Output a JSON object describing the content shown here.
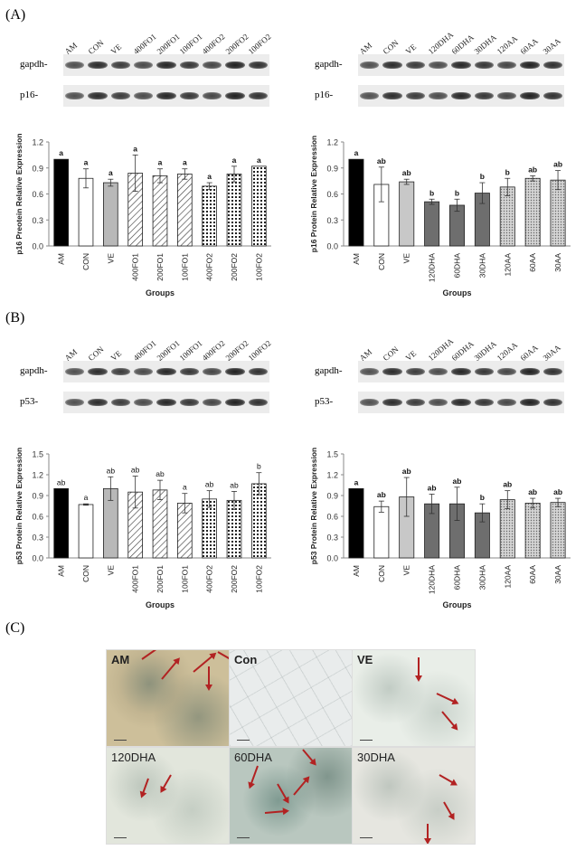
{
  "panels": {
    "a": "(A)",
    "b": "(B)",
    "c": "(C)"
  },
  "blots": {
    "a_left": {
      "lanes": [
        "AM",
        "CON",
        "VE",
        "400FO1",
        "200FO1",
        "100FO1",
        "400FO2",
        "200FO2",
        "100FO2"
      ],
      "row1": "gapdh-",
      "row2": "p16-"
    },
    "a_right": {
      "lanes": [
        "AM",
        "CON",
        "VE",
        "120DHA",
        "60DHA",
        "30DHA",
        "120AA",
        "60AA",
        "30AA"
      ],
      "row1": "gapdh-",
      "row2": "p16-"
    },
    "b_left": {
      "lanes": [
        "AM",
        "CON",
        "VE",
        "400FO1",
        "200FO1",
        "100FO1",
        "400FO2",
        "200FO2",
        "100FO2"
      ],
      "row1": "gapdh-",
      "row2": "p53-"
    },
    "b_right": {
      "lanes": [
        "AM",
        "CON",
        "VE",
        "120DHA",
        "60DHA",
        "30DHA",
        "120AA",
        "60AA",
        "30AA"
      ],
      "row1": "gapdh-",
      "row2": "p53-"
    }
  },
  "chart_data": [
    {
      "id": "a_left",
      "type": "bar",
      "ylabel": "p16 Preotein Relative Expression",
      "xlabel": "Groups",
      "ylim": [
        0,
        1.2
      ],
      "yticks": [
        "0.0",
        "0.3",
        "0.6",
        "0.9",
        "1.2"
      ],
      "categories": [
        "AM",
        "CON",
        "VE",
        "400FO1",
        "200FO1",
        "100FO1",
        "400FO2",
        "200FO2",
        "100FO2"
      ],
      "values": [
        1.0,
        0.78,
        0.73,
        0.84,
        0.81,
        0.83,
        0.69,
        0.83,
        0.92
      ],
      "errors": [
        0,
        0.11,
        0.04,
        0.21,
        0.08,
        0.06,
        0.04,
        0.09,
        0
      ],
      "letters": [
        "a",
        "a",
        "a",
        "a",
        "a",
        "a",
        "a",
        "a",
        "a"
      ],
      "letters_bold": true,
      "patterns": [
        "black",
        "white",
        "gray",
        "diag",
        "diag",
        "diag",
        "dots",
        "dots",
        "dots"
      ]
    },
    {
      "id": "a_right",
      "type": "bar",
      "ylabel": "p16 Protein Relative Expression",
      "xlabel": "Groups",
      "ylim": [
        0,
        1.2
      ],
      "yticks": [
        "0.0",
        "0.3",
        "0.6",
        "0.9",
        "1.2"
      ],
      "categories": [
        "AM",
        "CON",
        "VE",
        "120DHA",
        "60DHA",
        "30DHA",
        "120AA",
        "60AA",
        "30AA"
      ],
      "values": [
        1.0,
        0.71,
        0.74,
        0.51,
        0.47,
        0.61,
        0.68,
        0.78,
        0.76
      ],
      "errors": [
        0,
        0.2,
        0.03,
        0.03,
        0.07,
        0.12,
        0.1,
        0.03,
        0.11
      ],
      "letters": [
        "a",
        "ab",
        "ab",
        "b",
        "b",
        "b",
        "b",
        "ab",
        "ab"
      ],
      "letters_bold": true,
      "patterns": [
        "black",
        "white",
        "lightgray",
        "darkgray",
        "darkgray",
        "darkgray",
        "fine",
        "fine",
        "fine"
      ]
    },
    {
      "id": "b_left",
      "type": "bar",
      "ylabel": "p53 Protein Relative Expression",
      "xlabel": "Groups",
      "ylim": [
        0,
        1.5
      ],
      "yticks": [
        "0.0",
        "0.3",
        "0.6",
        "0.9",
        "1.2",
        "1.5"
      ],
      "categories": [
        "AM",
        "CON",
        "VE",
        "400FO1",
        "200FO1",
        "100FO1",
        "400FO2",
        "200FO2",
        "100FO2"
      ],
      "values": [
        1.0,
        0.77,
        1.0,
        0.95,
        0.98,
        0.79,
        0.85,
        0.83,
        1.07
      ],
      "errors": [
        0,
        0.01,
        0.17,
        0.23,
        0.14,
        0.14,
        0.12,
        0.13,
        0.16
      ],
      "letters": [
        "ab",
        "a",
        "ab",
        "ab",
        "ab",
        "a",
        "ab",
        "ab",
        "b"
      ],
      "letters_bold": false,
      "patterns": [
        "black",
        "white",
        "gray",
        "diag",
        "diag",
        "diag",
        "dots",
        "dots",
        "dots"
      ]
    },
    {
      "id": "b_right",
      "type": "bar",
      "ylabel": "p53 Protein Relative Expression",
      "xlabel": "Groups",
      "ylim": [
        0,
        1.5
      ],
      "yticks": [
        "0.0",
        "0.3",
        "0.6",
        "0.9",
        "1.2",
        "1.5"
      ],
      "categories": [
        "AM",
        "CON",
        "VE",
        "120DHA",
        "60DHA",
        "30DHA",
        "120AA",
        "60AA",
        "30AA"
      ],
      "values": [
        1.0,
        0.74,
        0.88,
        0.78,
        0.78,
        0.65,
        0.84,
        0.79,
        0.8
      ],
      "errors": [
        0,
        0.08,
        0.28,
        0.14,
        0.24,
        0.13,
        0.13,
        0.07,
        0.06
      ],
      "letters": [
        "a",
        "ab",
        "ab",
        "ab",
        "ab",
        "b",
        "ab",
        "ab",
        "ab"
      ],
      "letters_bold": true,
      "patterns": [
        "black",
        "white",
        "lightgray",
        "darkgray",
        "darkgray",
        "darkgray",
        "fine",
        "fine",
        "fine"
      ]
    }
  ],
  "micrographs": [
    {
      "label": "AM",
      "bold": true,
      "bg": "#cdbf9a"
    },
    {
      "label": "Con",
      "bold": true,
      "bg": "#e9ecec"
    },
    {
      "label": "VE",
      "bold": true,
      "bg": "#e9eee8"
    },
    {
      "label": "120DHA",
      "bold": false,
      "bg": "#e2e6dc"
    },
    {
      "label": "60DHA",
      "bold": false,
      "bg": "#b9c7bf"
    },
    {
      "label": "30DHA",
      "bold": false,
      "bg": "#e6e6e0"
    }
  ]
}
